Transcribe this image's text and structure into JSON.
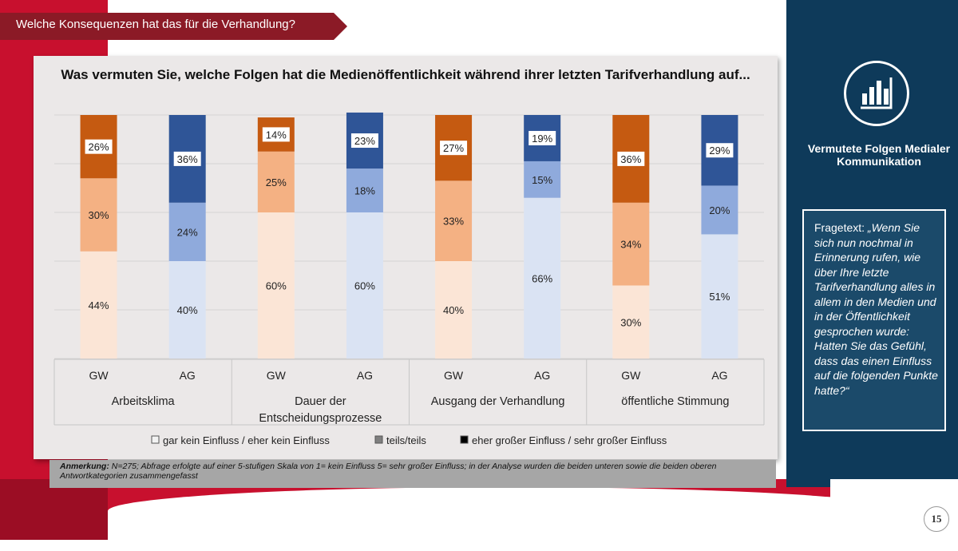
{
  "header": {
    "title": "Welche Konsequenzen hat das für die Verhandlung?"
  },
  "sidebar": {
    "icon": "bar-chart-icon",
    "title": "Vermutete Folgen Medialer Kommunikation",
    "question_label": "Fragetext: ",
    "question_text": "„Wenn Sie sich nun nochmal in Erinnerung rufen, wie über Ihre letzte Tarifverhandlung alles in allem in den Medien und in der Öffentlichkeit gesprochen wurde: Hatten Sie das Gefühl, dass das einen Einfluss auf die folgenden Punkte hatte?“"
  },
  "note": {
    "label": "Anmerkung:",
    "text": " N=275; Abfrage erfolgte auf einer 5-stufigen Skala von 1= kein Einfluss 5= sehr großer Einfluss; in der Analyse wurden die beiden unteren sowie die beiden oberen Antwortkategorien zusammengefasst"
  },
  "page_number": "15",
  "chart_data": {
    "type": "bar",
    "stacked": true,
    "title": "Was vermuten Sie, welche Folgen hat die Medienöffentlichkeit während ihrer letzten Tarifverhandlung auf...",
    "groups": [
      "Arbeitsklima",
      "Dauer der Entscheidungsprozesse",
      "Ausgang der Verhandlung",
      "öffentliche Stimmung"
    ],
    "categories": [
      "GW",
      "AG",
      "GW",
      "AG",
      "GW",
      "AG",
      "GW",
      "AG"
    ],
    "series": [
      {
        "name": "gar kein Einfluss / eher kein Einfluss",
        "values": [
          44,
          40,
          60,
          60,
          40,
          66,
          30,
          51
        ]
      },
      {
        "name": "teils/teils",
        "values": [
          30,
          24,
          25,
          18,
          33,
          15,
          34,
          20
        ]
      },
      {
        "name": "eher großer Einfluss / sehr großer Einfluss",
        "values": [
          26,
          36,
          14,
          23,
          27,
          19,
          36,
          29
        ]
      }
    ],
    "value_suffix": "%",
    "ylim": [
      0,
      100
    ],
    "colors": {
      "GW": [
        "#fbe5d6",
        "#f4b183",
        "#c55a11"
      ],
      "AG": [
        "#dae3f3",
        "#8faadc",
        "#2f5597"
      ]
    },
    "legend_position": "bottom",
    "legend_swatches": [
      "#f2f2f2",
      "#7f7f7f",
      "#000000"
    ]
  }
}
